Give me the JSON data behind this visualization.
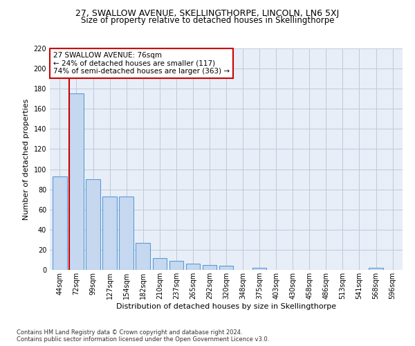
{
  "title": "27, SWALLOW AVENUE, SKELLINGTHORPE, LINCOLN, LN6 5XJ",
  "subtitle": "Size of property relative to detached houses in Skellingthorpe",
  "xlabel": "Distribution of detached houses by size in Skellingthorpe",
  "ylabel": "Number of detached properties",
  "footnote1": "Contains HM Land Registry data © Crown copyright and database right 2024.",
  "footnote2": "Contains public sector information licensed under the Open Government Licence v3.0.",
  "categories": [
    "44sqm",
    "72sqm",
    "99sqm",
    "127sqm",
    "154sqm",
    "182sqm",
    "210sqm",
    "237sqm",
    "265sqm",
    "292sqm",
    "320sqm",
    "348sqm",
    "375sqm",
    "403sqm",
    "430sqm",
    "458sqm",
    "486sqm",
    "513sqm",
    "541sqm",
    "568sqm",
    "596sqm"
  ],
  "values": [
    93,
    175,
    90,
    73,
    73,
    27,
    12,
    9,
    6,
    5,
    4,
    0,
    2,
    0,
    0,
    0,
    0,
    0,
    0,
    2,
    0
  ],
  "bar_color": "#c5d8f0",
  "bar_edge_color": "#5b9bd5",
  "property_line_label": "27 SWALLOW AVENUE: 76sqm",
  "annotation_line1": "← 24% of detached houses are smaller (117)",
  "annotation_line2": "74% of semi-detached houses are larger (363) →",
  "annotation_box_color": "#ffffff",
  "annotation_box_edge": "#cc0000",
  "vline_color": "#cc0000",
  "ylim": [
    0,
    220
  ],
  "yticks": [
    0,
    20,
    40,
    60,
    80,
    100,
    120,
    140,
    160,
    180,
    200,
    220
  ],
  "bg_color": "#ffffff",
  "grid_color": "#c0c8d8",
  "title_fontsize": 9,
  "subtitle_fontsize": 8.5,
  "axis_fontsize": 8,
  "tick_fontsize": 7,
  "annotation_fontsize": 7.5
}
